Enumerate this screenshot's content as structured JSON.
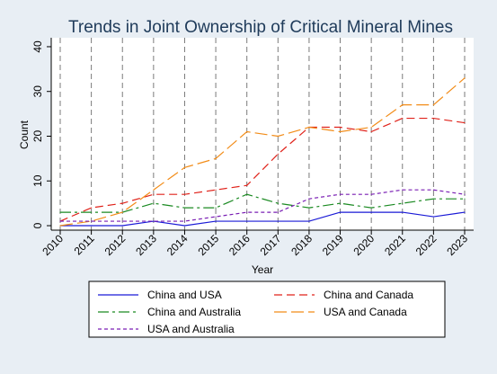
{
  "chart_data": {
    "type": "line",
    "title": "Trends in Joint Ownership of Critical Mineral Mines",
    "xlabel": "Year",
    "ylabel": "Count",
    "x": [
      2010,
      2011,
      2012,
      2013,
      2014,
      2015,
      2016,
      2017,
      2018,
      2019,
      2020,
      2021,
      2022,
      2023
    ],
    "xlim": [
      2010,
      2023
    ],
    "ylim": [
      -1,
      42
    ],
    "yticks": [
      0,
      10,
      20,
      30,
      40
    ],
    "grid": "vertical dashed",
    "legend_position": "bottom",
    "series": [
      {
        "name": "China and USA",
        "color": "#1a1ad6",
        "dash": "solid",
        "values": [
          0,
          0,
          0,
          1,
          0,
          1,
          1,
          1,
          1,
          3,
          3,
          3,
          2,
          3
        ]
      },
      {
        "name": "China and Canada",
        "color": "#e0231b",
        "dash": "long-dash",
        "values": [
          1,
          4,
          5,
          7,
          7,
          8,
          9,
          16,
          22,
          22,
          21,
          24,
          24,
          23
        ]
      },
      {
        "name": "China and Australia",
        "color": "#1b8a22",
        "dash": "dash-dot",
        "values": [
          3,
          3,
          3,
          5,
          4,
          4,
          7,
          5,
          4,
          5,
          4,
          5,
          6,
          6
        ]
      },
      {
        "name": "USA and Canada",
        "color": "#f28c18",
        "dash": "long-dash-light",
        "values": [
          0,
          1,
          3,
          8,
          13,
          15,
          21,
          20,
          22,
          21,
          22,
          27,
          27,
          33
        ]
      },
      {
        "name": "USA and Australia",
        "color": "#7a1fb4",
        "dash": "dotted-dash",
        "values": [
          1,
          1,
          1,
          1,
          1,
          2,
          3,
          3,
          6,
          7,
          7,
          8,
          8,
          7
        ]
      }
    ]
  }
}
